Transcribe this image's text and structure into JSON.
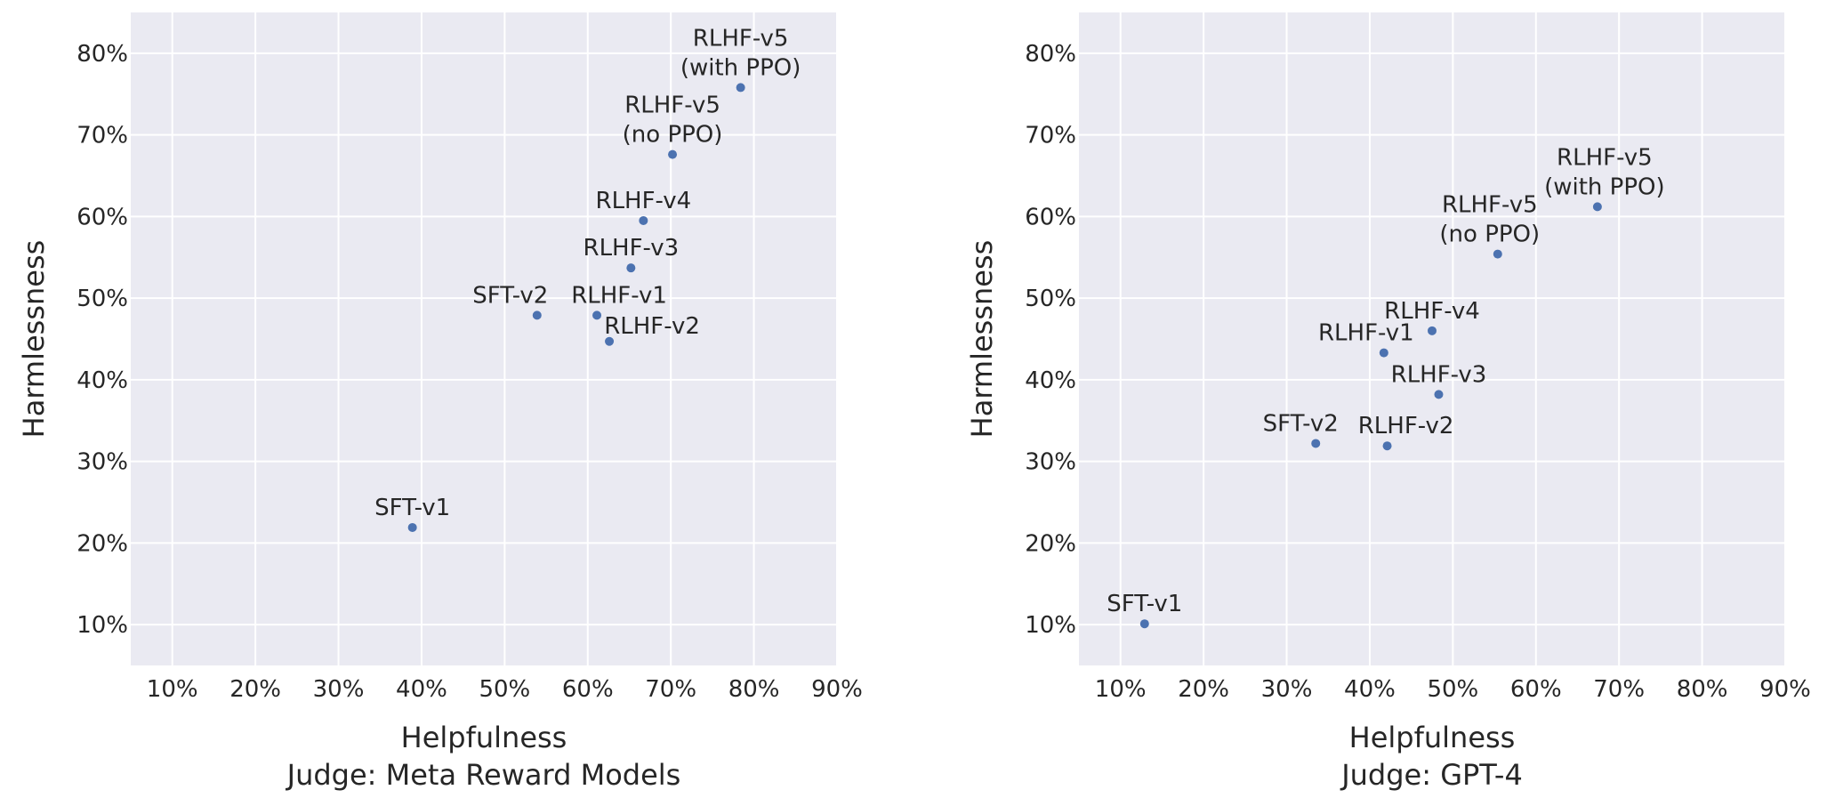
{
  "chart_data": [
    {
      "type": "scatter",
      "xlabel": "Helpfulness",
      "ylabel": "Harmlessness",
      "subtitle": "Judge: Meta Reward Models",
      "xlim": [
        5,
        90
      ],
      "ylim": [
        5,
        85
      ],
      "xticks": [
        "10%",
        "20%",
        "30%",
        "40%",
        "50%",
        "60%",
        "70%",
        "80%",
        "90%"
      ],
      "yticks": [
        "10%",
        "20%",
        "30%",
        "40%",
        "50%",
        "60%",
        "70%",
        "80%"
      ],
      "grid": true,
      "marker_color": "#4c72b0",
      "points": [
        {
          "label": "SFT-v1",
          "x": 38.9,
          "y": 21.9
        },
        {
          "label": "SFT-v2",
          "x": 53.9,
          "y": 47.9
        },
        {
          "label": "RLHF-v1",
          "x": 61.1,
          "y": 47.9
        },
        {
          "label": "RLHF-v2",
          "x": 62.6,
          "y": 44.7
        },
        {
          "label": "RLHF-v3",
          "x": 65.2,
          "y": 53.7
        },
        {
          "label": "RLHF-v4",
          "x": 66.7,
          "y": 59.5
        },
        {
          "label": "RLHF-v5\n(no PPO)",
          "x": 70.2,
          "y": 67.6
        },
        {
          "label": "RLHF-v5\n(with PPO)",
          "x": 78.4,
          "y": 75.8
        }
      ]
    },
    {
      "type": "scatter",
      "xlabel": "Helpfulness",
      "ylabel": "Harmlessness",
      "subtitle": "Judge: GPT-4",
      "xlim": [
        5,
        90
      ],
      "ylim": [
        5,
        85
      ],
      "xticks": [
        "10%",
        "20%",
        "30%",
        "40%",
        "50%",
        "60%",
        "70%",
        "80%",
        "90%"
      ],
      "yticks": [
        "10%",
        "20%",
        "30%",
        "40%",
        "50%",
        "60%",
        "70%",
        "80%"
      ],
      "grid": true,
      "marker_color": "#4c72b0",
      "points": [
        {
          "label": "SFT-v1",
          "x": 12.9,
          "y": 10.1
        },
        {
          "label": "SFT-v2",
          "x": 33.5,
          "y": 32.2
        },
        {
          "label": "RLHF-v1",
          "x": 41.7,
          "y": 43.3
        },
        {
          "label": "RLHF-v2",
          "x": 42.1,
          "y": 31.9
        },
        {
          "label": "RLHF-v3",
          "x": 48.3,
          "y": 38.2
        },
        {
          "label": "RLHF-v4",
          "x": 47.5,
          "y": 46.0
        },
        {
          "label": "RLHF-v5\n(no PPO)",
          "x": 55.4,
          "y": 55.4
        },
        {
          "label": "RLHF-v5\n(with PPO)",
          "x": 67.4,
          "y": 61.2
        }
      ]
    }
  ]
}
